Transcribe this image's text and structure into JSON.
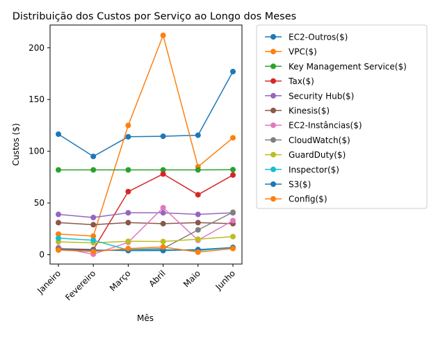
{
  "chart_data": {
    "type": "line",
    "title": "Distribuição dos Custos por Serviço ao Longo dos Meses",
    "xlabel": "Mês",
    "ylabel": "Custos ($)",
    "categories": [
      "Janeiro",
      "Fevereiro",
      "Março",
      "Abril",
      "Maio",
      "Junho"
    ],
    "ylim": [
      -9,
      222
    ],
    "yticks": [
      0,
      50,
      100,
      150,
      200
    ],
    "grid": false,
    "legend_position": "outside right",
    "series": [
      {
        "name": "EC2-Outros($)",
        "color": "#1f77b4",
        "values": [
          116.5,
          95,
          114,
          114.5,
          115.5,
          177
        ]
      },
      {
        "name": "VPC($)",
        "color": "#ff7f0e",
        "values": [
          20,
          18,
          125,
          212,
          85,
          113
        ]
      },
      {
        "name": "Key Management Service($)",
        "color": "#2ca02c",
        "values": [
          82,
          82,
          82,
          82,
          82,
          82.2
        ]
      },
      {
        "name": "Tax($)",
        "color": "#d62728",
        "values": [
          6,
          5,
          61,
          78,
          58,
          77
        ]
      },
      {
        "name": "Security Hub($)",
        "color": "#9467bd",
        "values": [
          39,
          36,
          40.5,
          40.5,
          39,
          40.5
        ]
      },
      {
        "name": "Kinesis($)",
        "color": "#8c564b",
        "values": [
          31,
          29,
          31,
          30,
          31,
          30
        ]
      },
      {
        "name": "EC2-Instâncias($)",
        "color": "#e377c2",
        "values": [
          7,
          0.5,
          12,
          45.5,
          14,
          33
        ]
      },
      {
        "name": "CloudWatch($)",
        "color": "#7f7f7f",
        "values": [
          6,
          4,
          5,
          6,
          24,
          41
        ]
      },
      {
        "name": "GuardDuty($)",
        "color": "#bcbd22",
        "values": [
          12.5,
          11.5,
          13,
          12.8,
          15,
          17.5
        ]
      },
      {
        "name": "Inspector($)",
        "color": "#17becf",
        "values": [
          16,
          14,
          4.5,
          5,
          4,
          7
        ]
      },
      {
        "name": "S3($)",
        "color": "#1f77b4",
        "values": [
          5,
          4.5,
          4,
          4,
          5,
          7
        ]
      },
      {
        "name": "Config($)",
        "color": "#ff7f0e",
        "values": [
          4.5,
          3,
          6,
          7.5,
          2.5,
          6
        ]
      }
    ]
  }
}
